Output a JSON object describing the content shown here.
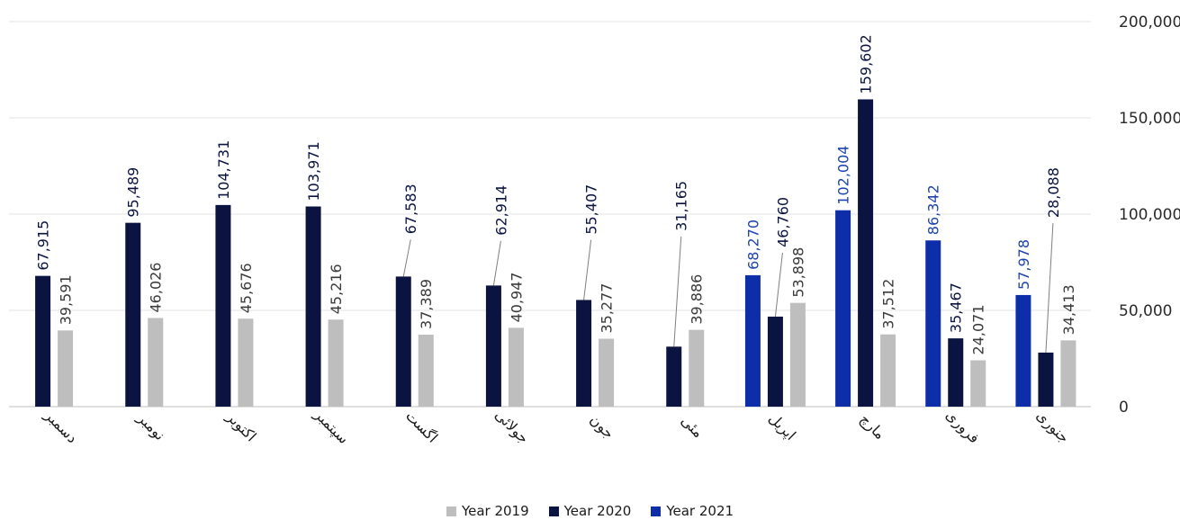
{
  "chart_data": {
    "type": "bar",
    "categories": [
      "دسمبر",
      "نومبر",
      "اکتوبر",
      "سپتمبر",
      "اگست",
      "جولائی",
      "جون",
      "مئی",
      "اپریل",
      "مارچ",
      "فروری",
      "جنوری"
    ],
    "series": [
      {
        "name": "Year 2021",
        "color": "#0d2ea8",
        "values": [
          null,
          null,
          null,
          null,
          null,
          null,
          null,
          null,
          68270,
          102004,
          86342,
          57978
        ],
        "labels": [
          "",
          "",
          "",
          "",
          "",
          "",
          "",
          "",
          "68,270",
          "102,004",
          "86,342",
          "57,978"
        ]
      },
      {
        "name": "Year 2020",
        "color": "#0b1440",
        "values": [
          67915,
          95489,
          104731,
          103971,
          67583,
          62914,
          55407,
          31165,
          46760,
          159602,
          35467,
          28088
        ],
        "labels": [
          "67,915",
          "95,489",
          "104,731",
          "103,971",
          "67,583",
          "62,914",
          "55,407",
          "31,165",
          "46,760",
          "159,602",
          "35,467",
          "28,088"
        ]
      },
      {
        "name": "Year 2019",
        "color": "#bfbebf",
        "values": [
          39591,
          46026,
          45676,
          45216,
          37389,
          40947,
          35277,
          39886,
          53898,
          37512,
          24071,
          34413
        ],
        "labels": [
          "39,591",
          "46,026",
          "45,676",
          "45,216",
          "37,389",
          "40,947",
          "35,277",
          "39,886",
          "53,898",
          "37,512",
          "24,071",
          "34,413"
        ]
      }
    ],
    "y_ticks": [
      "0",
      "50,000",
      "100,000",
      "150,000",
      "200,000"
    ],
    "ylim": [
      0,
      200000
    ],
    "title": "",
    "xlabel": "",
    "ylabel": "",
    "grid": true,
    "legend_position": "bottom",
    "legend": [
      "Year 2019",
      "Year 2020",
      "Year 2021"
    ]
  }
}
